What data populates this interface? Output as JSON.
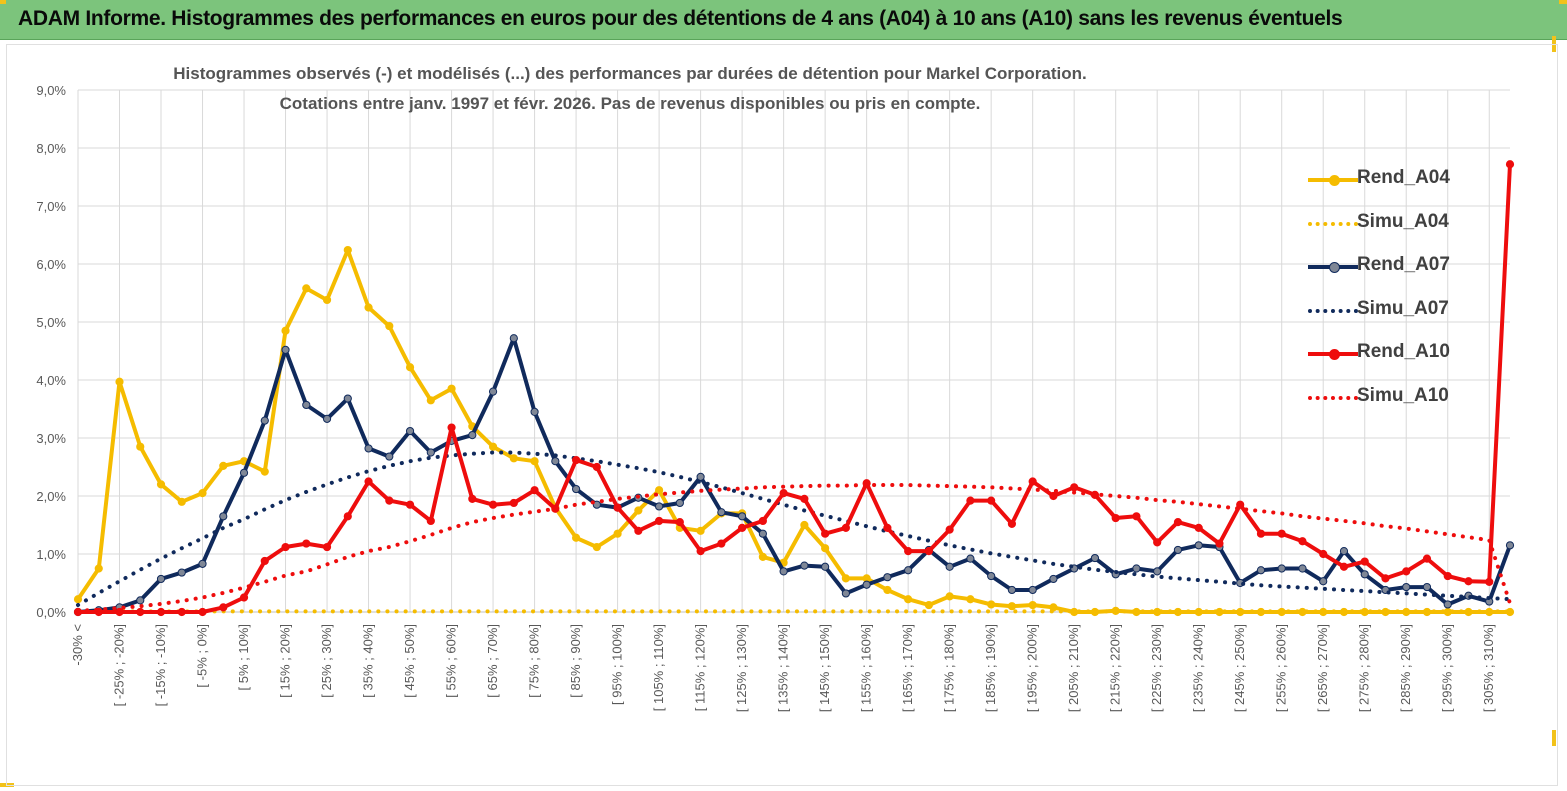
{
  "header": {
    "title": "ADAM Informe. Histogrammes des performances en euros pour des détentions de 4 ans (A04) à 10 ans (A10) sans les revenus éventuels"
  },
  "colors": {
    "header_bg": "#7cc47c",
    "accent": "#f2c21a",
    "a04": "#f5bc00",
    "a07": "#102a5c",
    "a10": "#ee0d0d"
  },
  "chart_data": {
    "type": "line",
    "title": "Histogrammes observés (-) et modélisés (...) des performances par durées de détention pour Markel Corporation.",
    "subtitle": "Cotations entre janv. 1997 et févr. 2026. Pas de revenus disponibles ou pris en compte.",
    "xlabel": "",
    "ylabel": "",
    "ylim": [
      0,
      9
    ],
    "y_ticks": [
      "0,0%",
      "1,0%",
      "2,0%",
      "3,0%",
      "4,0%",
      "5,0%",
      "6,0%",
      "7,0%",
      "8,0%",
      "9,0%"
    ],
    "grid": true,
    "legend_position": "right",
    "categories": [
      "-30% <",
      "[ -30% ; -25%]",
      "[ -25% ; -20%]",
      "[ -20% ; -15%]",
      "[ -15% ; -10%]",
      "[ -10% ; -5%]",
      "[ -5% ; 0%]",
      "[ 0% ; 5%]",
      "[ 5% ; 10%]",
      "[ 10% ; 15%]",
      "[ 15% ; 20%]",
      "[ 20% ; 25%]",
      "[ 25% ; 30%]",
      "[ 30% ; 35%]",
      "[ 35% ; 40%]",
      "[ 40% ; 45%]",
      "[ 45% ; 50%]",
      "[ 50% ; 55%]",
      "[ 55% ; 60%]",
      "[ 60% ; 65%]",
      "[ 65% ; 70%]",
      "[ 70% ; 75%]",
      "[ 75% ; 80%]",
      "[ 80% ; 85%]",
      "[ 85% ; 90%]",
      "[ 90% ; 95%]",
      "[ 95% ; 100%]",
      "[ 100% ; 105%]",
      "[ 105% ; 110%]",
      "[ 110% ; 115%]",
      "[ 115% ; 120%]",
      "[ 120% ; 125%]",
      "[ 125% ; 130%]",
      "[ 130% ; 135%]",
      "[ 135% ; 140%]",
      "[ 140% ; 145%]",
      "[ 145% ; 150%]",
      "[ 150% ; 155%]",
      "[ 155% ; 160%]",
      "[ 160% ; 165%]",
      "[ 165% ; 170%]",
      "[ 170% ; 175%]",
      "[ 175% ; 180%]",
      "[ 180% ; 185%]",
      "[ 185% ; 190%]",
      "[ 190% ; 195%]",
      "[ 195% ; 200%]",
      "[ 200% ; 205%]",
      "[ 205% ; 210%]",
      "[ 210% ; 215%]",
      "[ 215% ; 220%]",
      "[ 220% ; 225%]",
      "[ 225% ; 230%]",
      "[ 230% ; 235%]",
      "[ 235% ; 240%]",
      "[ 240% ; 245%]",
      "[ 245% ; 250%]",
      "[ 250% ; 255%]",
      "[ 255% ; 260%]",
      "[ 260% ; 265%]",
      "[ 265% ; 270%]",
      "[ 270% ; 275%]",
      "[ 275% ; 280%]",
      "[ 280% ; 285%]",
      "[ 285% ; 290%]",
      "[ 290% ; 295%]",
      "[ 295% ; 300%]",
      "[ 300% ; 305%]",
      "[ 305% ; 310%]",
      "[ 310% ; 315%]"
    ],
    "visible_tick_labels": [
      "-30% <",
      "[ -25% ; -20%]",
      "[ -15% ; -10%]",
      "[ -5% ; 0%]",
      "[ 5% ; 10%]",
      "[ 15% ; 20%]",
      "[ 25% ; 30%]",
      "[ 35% ; 40%]",
      "[ 45% ; 50%]",
      "[ 55% ; 60%]",
      "[ 65% ; 70%]",
      "[ 75% ; 80%]",
      "[ 85% ; 90%]",
      "[ 95% ; 100%]",
      "[ 105% ; 110%]",
      "[ 115% ; 120%]",
      "[ 125% ; 130%]",
      "[ 135% ; 140%]",
      "[ 145% ; 150%]",
      "[ 155% ; 160%]",
      "[ 165% ; 170%]",
      "[ 175% ; 180%]",
      "[ 185% ; 190%]",
      "[ 195% ; 200%]",
      "[ 205% ; 210%]",
      "[ 215% ; 220%]",
      "[ 225% ; 230%]",
      "[ 235% ; 240%]",
      "[ 245% ; 250%]",
      "[ 255% ; 260%]",
      "[ 265% ; 270%]",
      "[ 275% ; 280%]",
      "[ 285% ; 290%]",
      "[ 295% ; 300%]",
      "[ 305% ; 310%]"
    ],
    "series": [
      {
        "name": "Rend_A04",
        "style": "solid",
        "color": "#f5bc00",
        "values": [
          0.22,
          0.75,
          3.97,
          2.85,
          2.2,
          1.9,
          2.05,
          2.52,
          2.6,
          2.42,
          4.85,
          5.58,
          5.38,
          6.24,
          5.25,
          4.93,
          4.22,
          3.65,
          3.85,
          3.2,
          2.85,
          2.65,
          2.6,
          1.8,
          1.28,
          1.12,
          1.35,
          1.75,
          2.1,
          1.45,
          1.4,
          1.7,
          1.7,
          0.95,
          0.85,
          1.5,
          1.1,
          0.58,
          0.58,
          0.38,
          0.22,
          0.12,
          0.27,
          0.22,
          0.13,
          0.1,
          0.12,
          0.08,
          0.0,
          0.0,
          0.02,
          0.0,
          0.0,
          0.0,
          0.0,
          0.0,
          0.0,
          0.0,
          0.0,
          0.0,
          0.0,
          0.0,
          0.0,
          0.0,
          0.0,
          0.0,
          0.0,
          0.0,
          0.0,
          0.0
        ]
      },
      {
        "name": "Simu_A04",
        "style": "dotted",
        "color": "#f5bc00",
        "values": [
          0.01,
          0.01,
          0.01,
          0.01,
          0.01,
          0.01,
          0.01,
          0.01,
          0.01,
          0.01,
          0.01,
          0.01,
          0.01,
          0.01,
          0.01,
          0.01,
          0.01,
          0.01,
          0.01,
          0.01,
          0.01,
          0.01,
          0.01,
          0.01,
          0.01,
          0.01,
          0.01,
          0.01,
          0.01,
          0.01,
          0.01,
          0.01,
          0.01,
          0.01,
          0.01,
          0.01,
          0.01,
          0.01,
          0.01,
          0.01,
          0.01,
          0.01,
          0.01,
          0.01,
          0.01,
          0.01,
          0.01,
          0.01,
          0.01,
          0.01,
          0.01,
          0.01,
          0.01,
          0.01,
          0.01,
          0.01,
          0.01,
          0.01,
          0.01,
          0.01,
          0.01,
          0.01,
          0.01,
          0.01,
          0.01,
          0.01,
          0.01,
          0.01,
          0.01,
          0.01
        ]
      },
      {
        "name": "Rend_A07",
        "style": "solid",
        "color": "#102a5c",
        "values": [
          0.0,
          0.03,
          0.08,
          0.2,
          0.57,
          0.68,
          0.83,
          1.65,
          2.4,
          3.3,
          4.52,
          3.57,
          3.33,
          3.68,
          2.82,
          2.68,
          3.12,
          2.75,
          2.95,
          3.05,
          3.8,
          4.72,
          3.45,
          2.6,
          2.12,
          1.85,
          1.8,
          1.97,
          1.82,
          1.88,
          2.33,
          1.72,
          1.65,
          1.35,
          0.7,
          0.8,
          0.78,
          0.32,
          0.47,
          0.6,
          0.72,
          1.07,
          0.78,
          0.92,
          0.62,
          0.38,
          0.38,
          0.57,
          0.75,
          0.93,
          0.65,
          0.75,
          0.7,
          1.07,
          1.15,
          1.12,
          0.5,
          0.72,
          0.75,
          0.75,
          0.53,
          1.05,
          0.65,
          0.38,
          0.43,
          0.43,
          0.13,
          0.28,
          0.18,
          1.15
        ]
      },
      {
        "name": "Simu_A07",
        "style": "dotted",
        "color": "#102a5c",
        "values": [
          0.12,
          0.33,
          0.53,
          0.73,
          0.92,
          1.1,
          1.27,
          1.45,
          1.6,
          1.77,
          1.93,
          2.07,
          2.2,
          2.32,
          2.43,
          2.52,
          2.6,
          2.66,
          2.7,
          2.73,
          2.75,
          2.75,
          2.73,
          2.7,
          2.65,
          2.6,
          2.54,
          2.48,
          2.41,
          2.33,
          2.24,
          2.15,
          2.05,
          1.95,
          1.85,
          1.75,
          1.66,
          1.57,
          1.48,
          1.39,
          1.31,
          1.23,
          1.15,
          1.08,
          1.01,
          0.95,
          0.89,
          0.83,
          0.78,
          0.73,
          0.69,
          0.65,
          0.61,
          0.58,
          0.55,
          0.52,
          0.49,
          0.46,
          0.44,
          0.42,
          0.4,
          0.38,
          0.36,
          0.34,
          0.32,
          0.3,
          0.28,
          0.26,
          0.24,
          0.22
        ]
      },
      {
        "name": "Rend_A10",
        "style": "solid",
        "color": "#ee0d0d",
        "values": [
          0.0,
          0.0,
          0.0,
          0.0,
          0.0,
          0.0,
          0.0,
          0.08,
          0.25,
          0.88,
          1.12,
          1.18,
          1.12,
          1.65,
          2.25,
          1.92,
          1.85,
          1.57,
          3.18,
          1.95,
          1.85,
          1.88,
          2.1,
          1.78,
          2.62,
          2.5,
          1.8,
          1.4,
          1.57,
          1.55,
          1.05,
          1.18,
          1.45,
          1.57,
          2.05,
          1.95,
          1.35,
          1.45,
          2.22,
          1.45,
          1.05,
          1.05,
          1.42,
          1.92,
          1.92,
          1.52,
          2.25,
          2.0,
          2.15,
          2.02,
          1.62,
          1.65,
          1.2,
          1.55,
          1.45,
          1.18,
          1.85,
          1.35,
          1.35,
          1.22,
          1.0,
          0.78,
          0.87,
          0.58,
          0.7,
          0.92,
          0.62,
          0.53,
          0.52,
          7.72
        ]
      },
      {
        "name": "Simu_A10",
        "style": "dotted",
        "color": "#ee0d0d",
        "values": [
          0.02,
          0.04,
          0.07,
          0.1,
          0.14,
          0.19,
          0.25,
          0.33,
          0.42,
          0.52,
          0.63,
          0.7,
          0.82,
          0.95,
          1.05,
          1.12,
          1.22,
          1.33,
          1.45,
          1.55,
          1.62,
          1.68,
          1.73,
          1.78,
          1.85,
          1.9,
          1.95,
          1.99,
          2.03,
          2.06,
          2.09,
          2.11,
          2.13,
          2.15,
          2.16,
          2.17,
          2.18,
          2.18,
          2.19,
          2.19,
          2.19,
          2.18,
          2.17,
          2.16,
          2.15,
          2.13,
          2.11,
          2.09,
          2.06,
          2.03,
          2.0,
          1.97,
          1.93,
          1.9,
          1.86,
          1.82,
          1.78,
          1.74,
          1.7,
          1.65,
          1.61,
          1.57,
          1.53,
          1.48,
          1.44,
          1.39,
          1.34,
          1.29,
          1.24,
          0.15
        ]
      }
    ]
  }
}
